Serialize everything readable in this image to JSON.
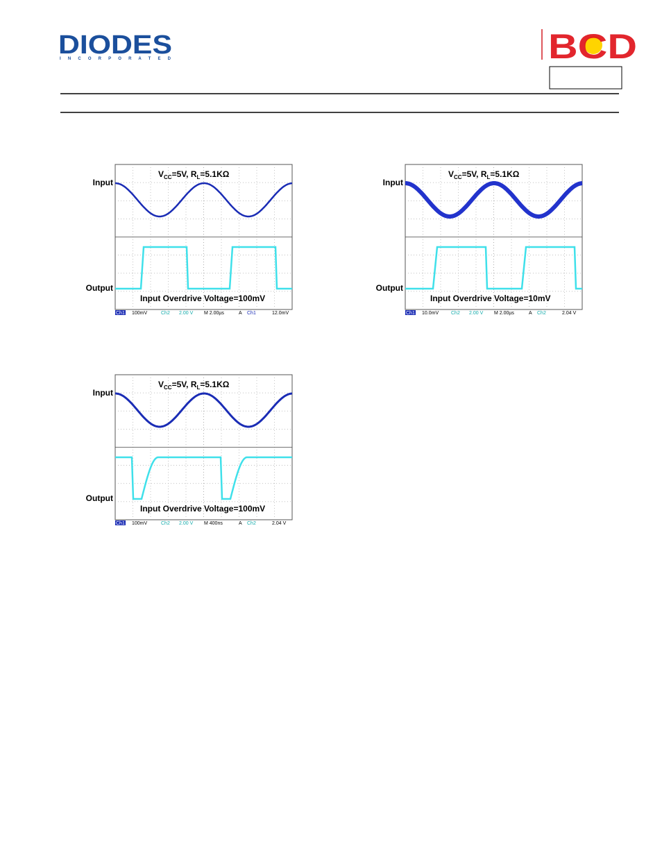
{
  "header": {
    "logo": "DIODES",
    "logo_sub": "I N C O R P O R A T E D",
    "brand": "BCD"
  },
  "scopes": [
    {
      "input_label": "Input",
      "output_label": "Output",
      "condition": [
        "V",
        "CC",
        "=5V, R",
        "L",
        "=5.1KΩ"
      ],
      "caption": "Input Overdrive Voltage=100mV",
      "status": [
        "Ch1",
        "100mV",
        "Ch2",
        "2.00 V",
        "M 2.00µs",
        "A",
        "Ch1",
        "12.0mV"
      ]
    },
    {
      "input_label": "Input",
      "output_label": "Output",
      "condition": [
        "V",
        "CC",
        "=5V, R",
        "L",
        "=5.1KΩ"
      ],
      "caption": "Input Overdrive Voltage=10mV",
      "status": [
        "Ch1",
        "10.0mV",
        "Ch2",
        "2.00 V",
        "M 2.00µs",
        "A",
        "Ch2",
        "2.04 V"
      ]
    },
    {
      "input_label": "Input",
      "output_label": "Output",
      "condition": [
        "V",
        "CC",
        "=5V, R",
        "L",
        "=5.1KΩ"
      ],
      "caption": "Input Overdrive Voltage=100mV",
      "status": [
        "Ch1",
        "100mV",
        "Ch2",
        "2.00 V",
        "M 400ns",
        "A",
        "Ch2",
        "2.04 V"
      ]
    }
  ]
}
